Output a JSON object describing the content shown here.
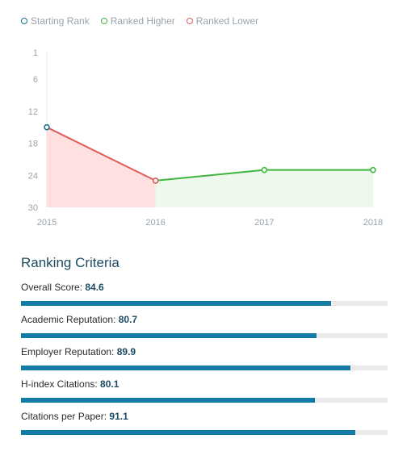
{
  "legend": [
    {
      "label": "Starting Rank",
      "color": "#1b6e8f"
    },
    {
      "label": "Ranked Higher",
      "color": "#3fb53f"
    },
    {
      "label": "Ranked Lower",
      "color": "#e05c5c"
    }
  ],
  "chart_data": {
    "type": "line",
    "x": [
      "2015",
      "2016",
      "2017",
      "2018"
    ],
    "series": [
      {
        "name": "Starting Rank",
        "x": [
          "2015"
        ],
        "values": [
          15
        ]
      },
      {
        "name": "Ranked Lower",
        "x": [
          "2015",
          "2016"
        ],
        "values": [
          15,
          25
        ]
      },
      {
        "name": "Ranked Higher",
        "x": [
          "2016",
          "2017",
          "2018"
        ],
        "values": [
          25,
          23,
          23
        ]
      }
    ],
    "y_ticks": [
      "1",
      "6",
      "12",
      "18",
      "24",
      "30"
    ],
    "ylim": [
      1,
      30
    ],
    "y_inverted": true,
    "fills": {
      "lower": "#fde0df",
      "higher": "#eef8ec"
    },
    "grid": false
  },
  "criteria": {
    "title": "Ranking Criteria",
    "items": [
      {
        "label": "Overall Score:",
        "value": "84.6",
        "fraction": 0.846
      },
      {
        "label": "Academic Reputation:",
        "value": "80.7",
        "fraction": 0.807
      },
      {
        "label": "Employer Reputation:",
        "value": "89.9",
        "fraction": 0.899
      },
      {
        "label": "H-index Citations:",
        "value": "80.1",
        "fraction": 0.801
      },
      {
        "label": "Citations per Paper:",
        "value": "91.1",
        "fraction": 0.911
      }
    ]
  }
}
